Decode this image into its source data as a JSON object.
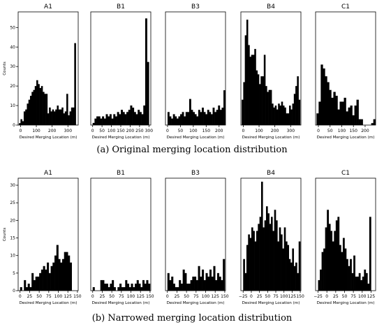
{
  "captions": {
    "top": "(a) Original merging location distribution",
    "bottom": "(b) Narrowed merging location distribution"
  },
  "chart_data": [
    {
      "type": "bar",
      "group": "a",
      "title": "A1",
      "xlabel": "Desired Merging Location (m)",
      "ylabel": "Counts",
      "xlim": [
        -15,
        365
      ],
      "ylim": [
        0,
        58
      ],
      "xticks": [
        0,
        100,
        200,
        300
      ],
      "yticks": [
        0,
        10,
        20,
        30,
        40,
        50
      ],
      "bin_start": -10,
      "bin_width": 10,
      "values": [
        1,
        3,
        2,
        7,
        8,
        11,
        13,
        15,
        17,
        18,
        20,
        23,
        21,
        19,
        20,
        17,
        16,
        16,
        6,
        9,
        7,
        8,
        7,
        8,
        10,
        8,
        8,
        9,
        6,
        7,
        16,
        5,
        7,
        9,
        9,
        42
      ]
    },
    {
      "type": "bar",
      "group": "a",
      "title": "B1",
      "xlabel": "Desired Merging Location (m)",
      "ylabel": "",
      "xlim": [
        -10,
        310
      ],
      "ylim": [
        0,
        52
      ],
      "xticks": [
        0,
        50,
        100,
        150,
        200,
        250,
        300
      ],
      "yticks": [],
      "bin_start": 0,
      "bin_width": 10,
      "values": [
        1,
        3,
        4,
        4,
        3,
        4,
        3,
        5,
        4,
        5,
        3,
        5,
        4,
        6,
        5,
        7,
        6,
        5,
        6,
        7,
        9,
        8,
        6,
        5,
        7,
        6,
        5,
        9,
        49,
        29
      ]
    },
    {
      "type": "bar",
      "group": "a",
      "title": "B3",
      "xlabel": "Desired Merging Location (m)",
      "ylabel": "",
      "xlim": [
        -8,
        225
      ],
      "ylim": [
        0,
        52
      ],
      "xticks": [
        0,
        50,
        100,
        150,
        200
      ],
      "yticks": [],
      "bin_start": 0,
      "bin_width": 7,
      "values": [
        6,
        4,
        3,
        5,
        4,
        3,
        4,
        5,
        6,
        4,
        6,
        6,
        12,
        7,
        6,
        5,
        4,
        7,
        6,
        8,
        6,
        5,
        7,
        6,
        5,
        8,
        6,
        7,
        9,
        7,
        8,
        16
      ]
    },
    {
      "type": "bar",
      "group": "a",
      "title": "B4",
      "xlabel": "Desired Merging Location (m)",
      "ylabel": "",
      "xlim": [
        -15,
        365
      ],
      "ylim": [
        0,
        58
      ],
      "xticks": [
        0,
        100,
        200,
        300
      ],
      "yticks": [],
      "bin_start": -10,
      "bin_width": 10,
      "values": [
        13,
        22,
        46,
        54,
        41,
        35,
        36,
        36,
        39,
        28,
        26,
        21,
        25,
        25,
        36,
        20,
        17,
        18,
        18,
        11,
        9,
        10,
        8,
        11,
        10,
        12,
        10,
        9,
        6,
        6,
        10,
        8,
        11,
        16,
        20,
        25,
        13
      ]
    },
    {
      "type": "bar",
      "group": "a",
      "title": "C1",
      "xlabel": "Desired Merging Location (m)",
      "ylabel": "",
      "xlim": [
        -12,
        245
      ],
      "ylim": [
        0,
        58
      ],
      "xticks": [
        0,
        50,
        100,
        150,
        200
      ],
      "yticks": [],
      "bin_start": -8,
      "bin_width": 9,
      "values": [
        6,
        12,
        31,
        29,
        25,
        22,
        18,
        14,
        17,
        15,
        8,
        12,
        12,
        14,
        7,
        9,
        10,
        5,
        10,
        13,
        3,
        3,
        0,
        0,
        0,
        0,
        1,
        3
      ]
    },
    {
      "type": "bar",
      "group": "b",
      "title": "A1",
      "xlabel": "Desired Merging Location (m)",
      "ylabel": "Counts",
      "xlim": [
        -5,
        152
      ],
      "ylim": [
        0,
        32
      ],
      "xticks": [
        0,
        25,
        50,
        75,
        100,
        125,
        150
      ],
      "yticks": [
        0,
        5,
        10,
        15,
        20,
        25,
        30
      ],
      "bin_start": 0,
      "bin_width": 5,
      "values": [
        1,
        0,
        3,
        1,
        2,
        1,
        5,
        3,
        4,
        4,
        5,
        6,
        7,
        6,
        8,
        5,
        7,
        8,
        10,
        13,
        9,
        8,
        9,
        11,
        11,
        10,
        8
      ]
    },
    {
      "type": "bar",
      "group": "b",
      "title": "B1",
      "xlabel": "Desired Merging Location (m)",
      "ylabel": "",
      "xlim": [
        -5,
        152
      ],
      "ylim": [
        0,
        32
      ],
      "xticks": [
        0,
        25,
        50,
        75,
        100,
        125,
        150
      ],
      "yticks": [],
      "bin_start": 0,
      "bin_width": 5,
      "values": [
        1,
        0,
        0,
        0,
        3,
        3,
        2,
        2,
        1,
        2,
        3,
        1,
        0,
        1,
        2,
        1,
        1,
        3,
        2,
        1,
        2,
        1,
        2,
        3,
        2,
        1,
        3,
        2,
        3,
        2
      ]
    },
    {
      "type": "bar",
      "group": "b",
      "title": "B3",
      "xlabel": "Desired Merging Location (m)",
      "ylabel": "",
      "xlim": [
        -5,
        152
      ],
      "ylim": [
        0,
        32
      ],
      "xticks": [
        0,
        25,
        50,
        75,
        100,
        125,
        150
      ],
      "yticks": [],
      "bin_start": 0,
      "bin_width": 5,
      "values": [
        5,
        3,
        4,
        2,
        1,
        1,
        3,
        2,
        6,
        5,
        2,
        2,
        3,
        4,
        4,
        3,
        7,
        4,
        6,
        3,
        5,
        4,
        6,
        4,
        7,
        3,
        5,
        4,
        3,
        9
      ]
    },
    {
      "type": "bar",
      "group": "b",
      "title": "B4",
      "xlabel": "Desired Merging Location (m)",
      "ylabel": "",
      "xlim": [
        -32,
        152
      ],
      "ylim": [
        0,
        32
      ],
      "xticks": [
        -25,
        0,
        25,
        50,
        75,
        100,
        125,
        150
      ],
      "yticks": [],
      "bin_start": -25,
      "bin_width": 5,
      "values": [
        9,
        5,
        13,
        16,
        15,
        18,
        17,
        14,
        17,
        19,
        21,
        31,
        18,
        20,
        24,
        22,
        19,
        21,
        17,
        23,
        20,
        14,
        18,
        16,
        12,
        18,
        14,
        13,
        9,
        8,
        12,
        7,
        8,
        5,
        14
      ]
    },
    {
      "type": "bar",
      "group": "b",
      "title": "C1",
      "xlabel": "Desired Merging Location (m)",
      "ylabel": "",
      "xlim": [
        -32,
        138
      ],
      "ylim": [
        0,
        32
      ],
      "xticks": [
        -25,
        0,
        25,
        50,
        75,
        100,
        125
      ],
      "yticks": [],
      "bin_start": -25,
      "bin_width": 5,
      "values": [
        3,
        6,
        11,
        12,
        18,
        23,
        19,
        17,
        14,
        17,
        20,
        21,
        13,
        11,
        15,
        12,
        9,
        7,
        9,
        5,
        10,
        4,
        4,
        5,
        3,
        4,
        6,
        5,
        2,
        21
      ]
    }
  ]
}
